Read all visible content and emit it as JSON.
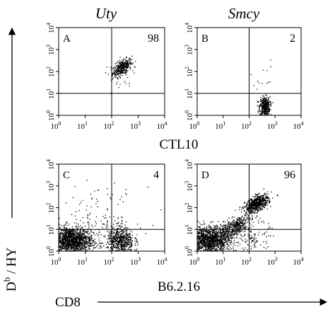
{
  "figure": {
    "column_titles": [
      "Uty",
      "Smcy"
    ],
    "row_labels": [
      "CTL10",
      "B6.2.16"
    ],
    "y_axis_label": "Db / HY",
    "x_axis_label": "CD8",
    "tick_exponents": [
      "0",
      "1",
      "2",
      "3",
      "4"
    ]
  },
  "chart_data": [
    {
      "type": "scatter",
      "panel": "A",
      "column": "Uty",
      "row": "CTL10",
      "quadrant_percent": "98",
      "xlim": [
        1,
        10000
      ],
      "ylim": [
        1,
        10000
      ],
      "log_scale": true,
      "gate": {
        "x": 100,
        "y": 10
      },
      "populations": [
        {
          "cx": 250,
          "cy": 150,
          "spread_x": 0.18,
          "spread_y": 0.2,
          "count": 380,
          "corr": 0.6
        },
        {
          "cx": 200,
          "cy": 40,
          "spread_x": 0.35,
          "spread_y": 0.4,
          "count": 25,
          "corr": 0
        }
      ]
    },
    {
      "type": "scatter",
      "panel": "B",
      "column": "Smcy",
      "row": "CTL10",
      "quadrant_percent": "2",
      "xlim": [
        1,
        10000
      ],
      "ylim": [
        1,
        10000
      ],
      "log_scale": true,
      "gate": {
        "x": 100,
        "y": 10
      },
      "populations": [
        {
          "cx": 400,
          "cy": 2.5,
          "spread_x": 0.1,
          "spread_y": 0.22,
          "count": 420,
          "corr": 0
        },
        {
          "cx": 300,
          "cy": 40,
          "spread_x": 0.25,
          "spread_y": 0.45,
          "count": 14,
          "corr": 0
        }
      ]
    },
    {
      "type": "scatter",
      "panel": "C",
      "column": "Uty",
      "row": "B6.2.16",
      "quadrant_percent": "4",
      "xlim": [
        1,
        10000
      ],
      "ylim": [
        1,
        10000
      ],
      "log_scale": true,
      "gate": {
        "x": 100,
        "y": 10
      },
      "populations": [
        {
          "cx": 3,
          "cy": 3,
          "spread_x": 0.4,
          "spread_y": 0.32,
          "count": 1500,
          "corr": 0
        },
        {
          "cx": 220,
          "cy": 3,
          "spread_x": 0.25,
          "spread_y": 0.32,
          "count": 600,
          "corr": 0
        },
        {
          "cx": 30,
          "cy": 30,
          "spread_x": 0.8,
          "spread_y": 0.7,
          "count": 140,
          "corr": 0
        }
      ]
    },
    {
      "type": "scatter",
      "panel": "D",
      "column": "Smcy",
      "row": "B6.2.16",
      "quadrant_percent": "96",
      "xlim": [
        1,
        10000
      ],
      "ylim": [
        1,
        10000
      ],
      "log_scale": true,
      "gate": {
        "x": 100,
        "y": 10
      },
      "populations": [
        {
          "cx": 3,
          "cy": 3,
          "spread_x": 0.4,
          "spread_y": 0.32,
          "count": 1400,
          "corr": 0
        },
        {
          "cx": 200,
          "cy": 150,
          "spread_x": 0.22,
          "spread_y": 0.2,
          "count": 650,
          "corr": 0.5
        },
        {
          "cx": 25,
          "cy": 12,
          "spread_x": 0.35,
          "spread_y": 0.3,
          "count": 450,
          "corr": 0.7
        },
        {
          "cx": 150,
          "cy": 4,
          "spread_x": 0.3,
          "spread_y": 0.4,
          "count": 120,
          "corr": 0
        }
      ]
    }
  ]
}
